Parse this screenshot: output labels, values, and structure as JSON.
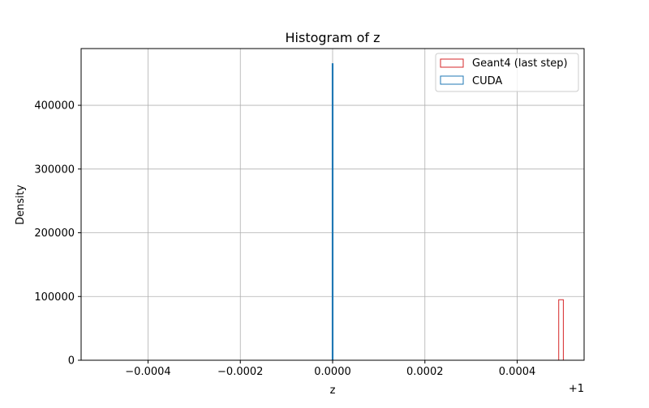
{
  "chart_data": {
    "type": "histogram",
    "title": "Histogram of z",
    "xlabel": "z",
    "ylabel": "Density",
    "x_offset_label": "+1",
    "xlim": [
      -0.000545,
      0.000545
    ],
    "ylim": [
      0,
      489000
    ],
    "grid": true,
    "legend_position": "top-right",
    "x_ticks": [
      {
        "value": -0.0004,
        "label": "−0.0004"
      },
      {
        "value": -0.0002,
        "label": "−0.0002"
      },
      {
        "value": 0.0,
        "label": "0.0000"
      },
      {
        "value": 0.0002,
        "label": "0.0002"
      },
      {
        "value": 0.0004,
        "label": "0.0004"
      }
    ],
    "y_ticks": [
      {
        "value": 0,
        "label": "0"
      },
      {
        "value": 100000,
        "label": "100000"
      },
      {
        "value": 200000,
        "label": "200000"
      },
      {
        "value": 300000,
        "label": "300000"
      },
      {
        "value": 400000,
        "label": "400000"
      }
    ],
    "series": [
      {
        "name": "Geant4 (last step)",
        "color": "#d62728",
        "range": [
          -0.0005,
          0.0005
        ],
        "bins": [
          {
            "x0": 0.00049,
            "x1": 0.0005,
            "density": 95000
          }
        ]
      },
      {
        "name": "CUDA",
        "color": "#1f77b4",
        "range": [
          -5e-07,
          5e-07
        ],
        "bins": [
          {
            "x0": -5e-07,
            "x1": 5e-07,
            "density": 465000
          }
        ]
      }
    ]
  }
}
